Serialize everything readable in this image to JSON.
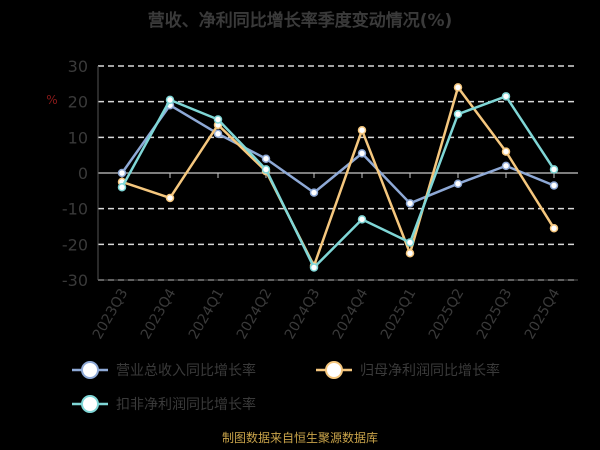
{
  "chart_data": {
    "type": "line",
    "title": "营收、净利同比增长率季度变动情况(%)",
    "ylabel": "%",
    "categories": [
      "2023Q3",
      "2023Q4",
      "2024Q1",
      "2024Q2",
      "2024Q3",
      "2024Q4",
      "2025Q1",
      "2025Q2",
      "2025Q3",
      "2025Q4"
    ],
    "ylim": [
      -30,
      30
    ],
    "yticks": [
      30,
      20,
      10,
      0,
      -10,
      -20,
      -30
    ],
    "grid": true,
    "legend_position": "bottom",
    "series": [
      {
        "name": "营业总收入同比增长率",
        "color": "#8ea9d6",
        "values": [
          0.0,
          19.0,
          11.0,
          4.0,
          -5.5,
          5.5,
          -8.5,
          -3.0,
          2.0,
          -3.5
        ]
      },
      {
        "name": "归母净利润同比增长率",
        "color": "#f5c77e",
        "values": [
          -2.5,
          -7.0,
          13.5,
          0.5,
          -26.0,
          12.0,
          -22.5,
          24.0,
          6.0,
          -15.5
        ]
      },
      {
        "name": "扣非净利润同比增长率",
        "color": "#7fd6d6",
        "values": [
          -4.0,
          20.5,
          15.0,
          1.0,
          -26.5,
          -13.0,
          -19.5,
          16.5,
          21.5,
          1.0
        ]
      }
    ]
  },
  "source": "制图数据来自恒生聚源数据库"
}
